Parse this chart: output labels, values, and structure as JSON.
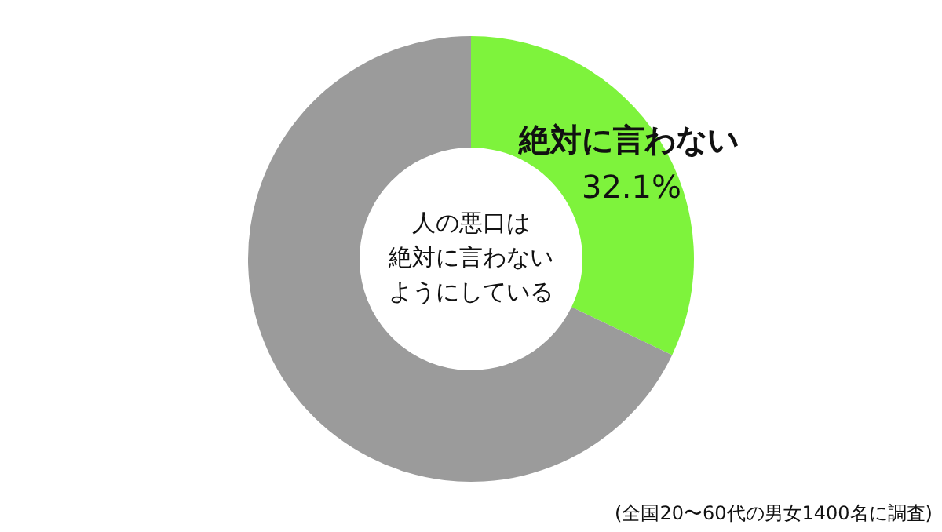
{
  "chart_data": {
    "type": "donut",
    "title": "人の悪口は",
    "subtitle": "絶対に言わないようにしている",
    "categories": [
      "絶対に言わない",
      null
    ],
    "values": [
      32.1,
      67.9
    ],
    "colors": [
      "#7ef33c",
      "#9b9b9b"
    ],
    "value_labels": [
      "32.1%",
      null
    ],
    "annotations": [
      "(全国20〜60代の男女1400名に調査)"
    ]
  }
}
